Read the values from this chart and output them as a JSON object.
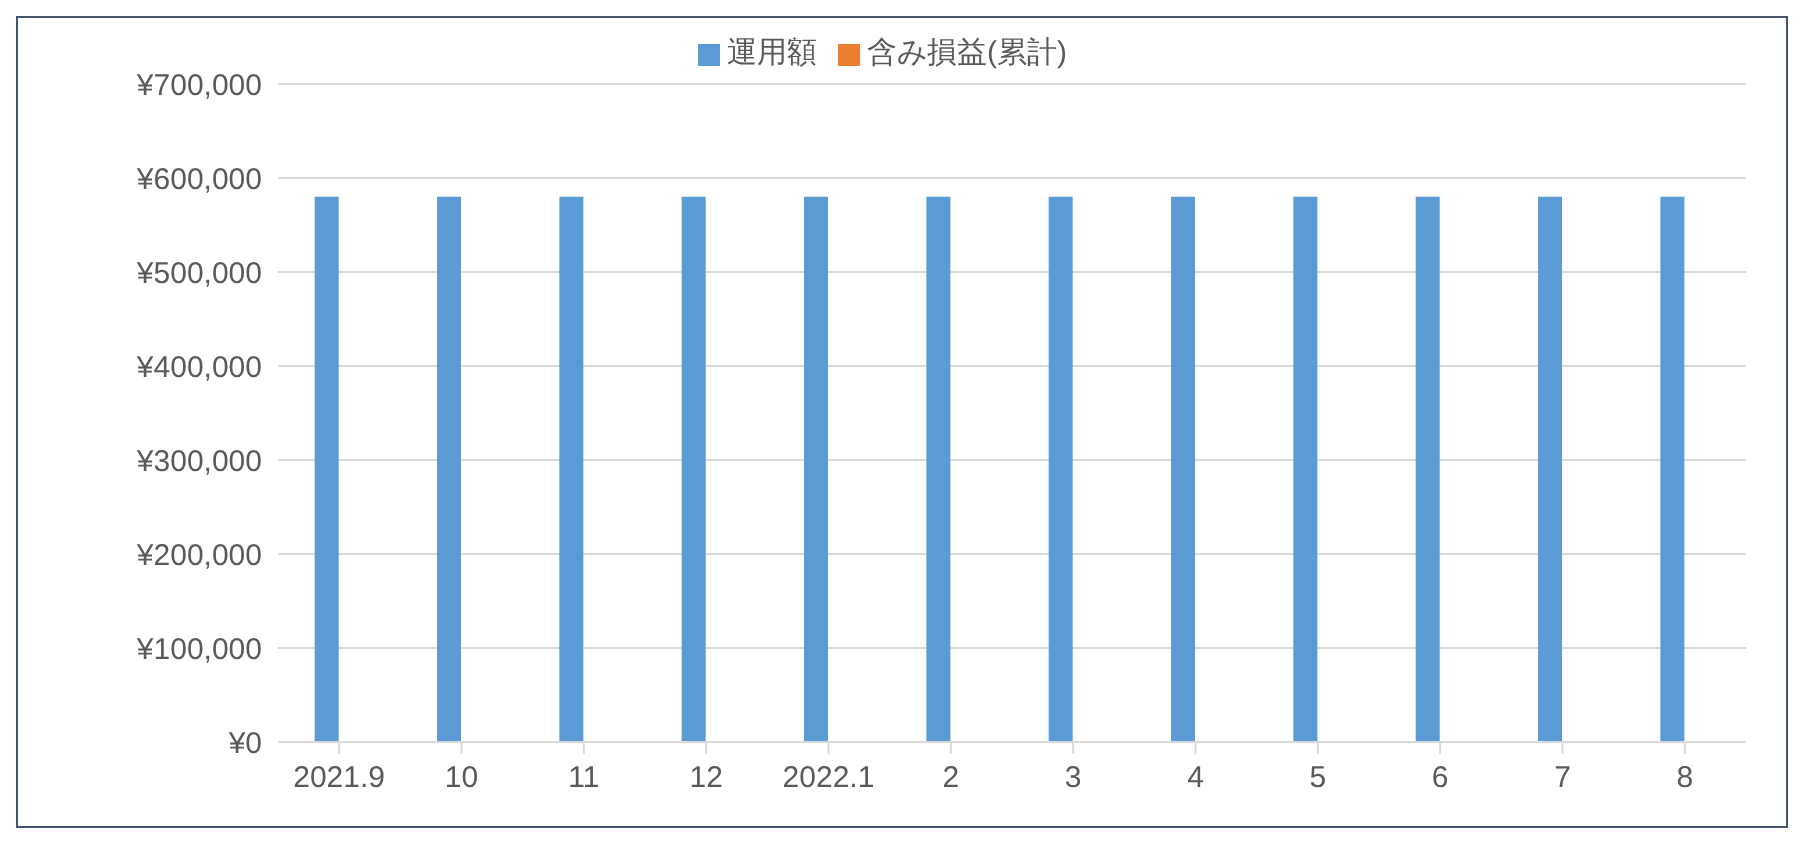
{
  "chart_data": {
    "type": "bar",
    "categories": [
      "2021.9",
      "10",
      "11",
      "12",
      "2022.1",
      "2",
      "3",
      "4",
      "5",
      "6",
      "7",
      "8"
    ],
    "series": [
      {
        "name": "運用額",
        "color": "#5b9bd5",
        "values": [
          580000,
          580000,
          580000,
          580000,
          580000,
          580000,
          580000,
          580000,
          580000,
          580000,
          580000,
          580000
        ]
      },
      {
        "name": "含み損益(累計)",
        "color": "#ed7d31",
        "values": [
          0,
          0,
          0,
          0,
          0,
          0,
          0,
          0,
          0,
          0,
          0,
          0
        ]
      }
    ],
    "ylim": [
      0,
      700000
    ],
    "yticks": [
      {
        "value": 0,
        "label": "¥0"
      },
      {
        "value": 100000,
        "label": "¥100,000"
      },
      {
        "value": 200000,
        "label": "¥200,000"
      },
      {
        "value": 300000,
        "label": "¥300,000"
      },
      {
        "value": 400000,
        "label": "¥400,000"
      },
      {
        "value": 500000,
        "label": "¥500,000"
      },
      {
        "value": 600000,
        "label": "¥600,000"
      },
      {
        "value": 700000,
        "label": "¥700,000"
      }
    ],
    "grid": "y",
    "legend": "top"
  }
}
